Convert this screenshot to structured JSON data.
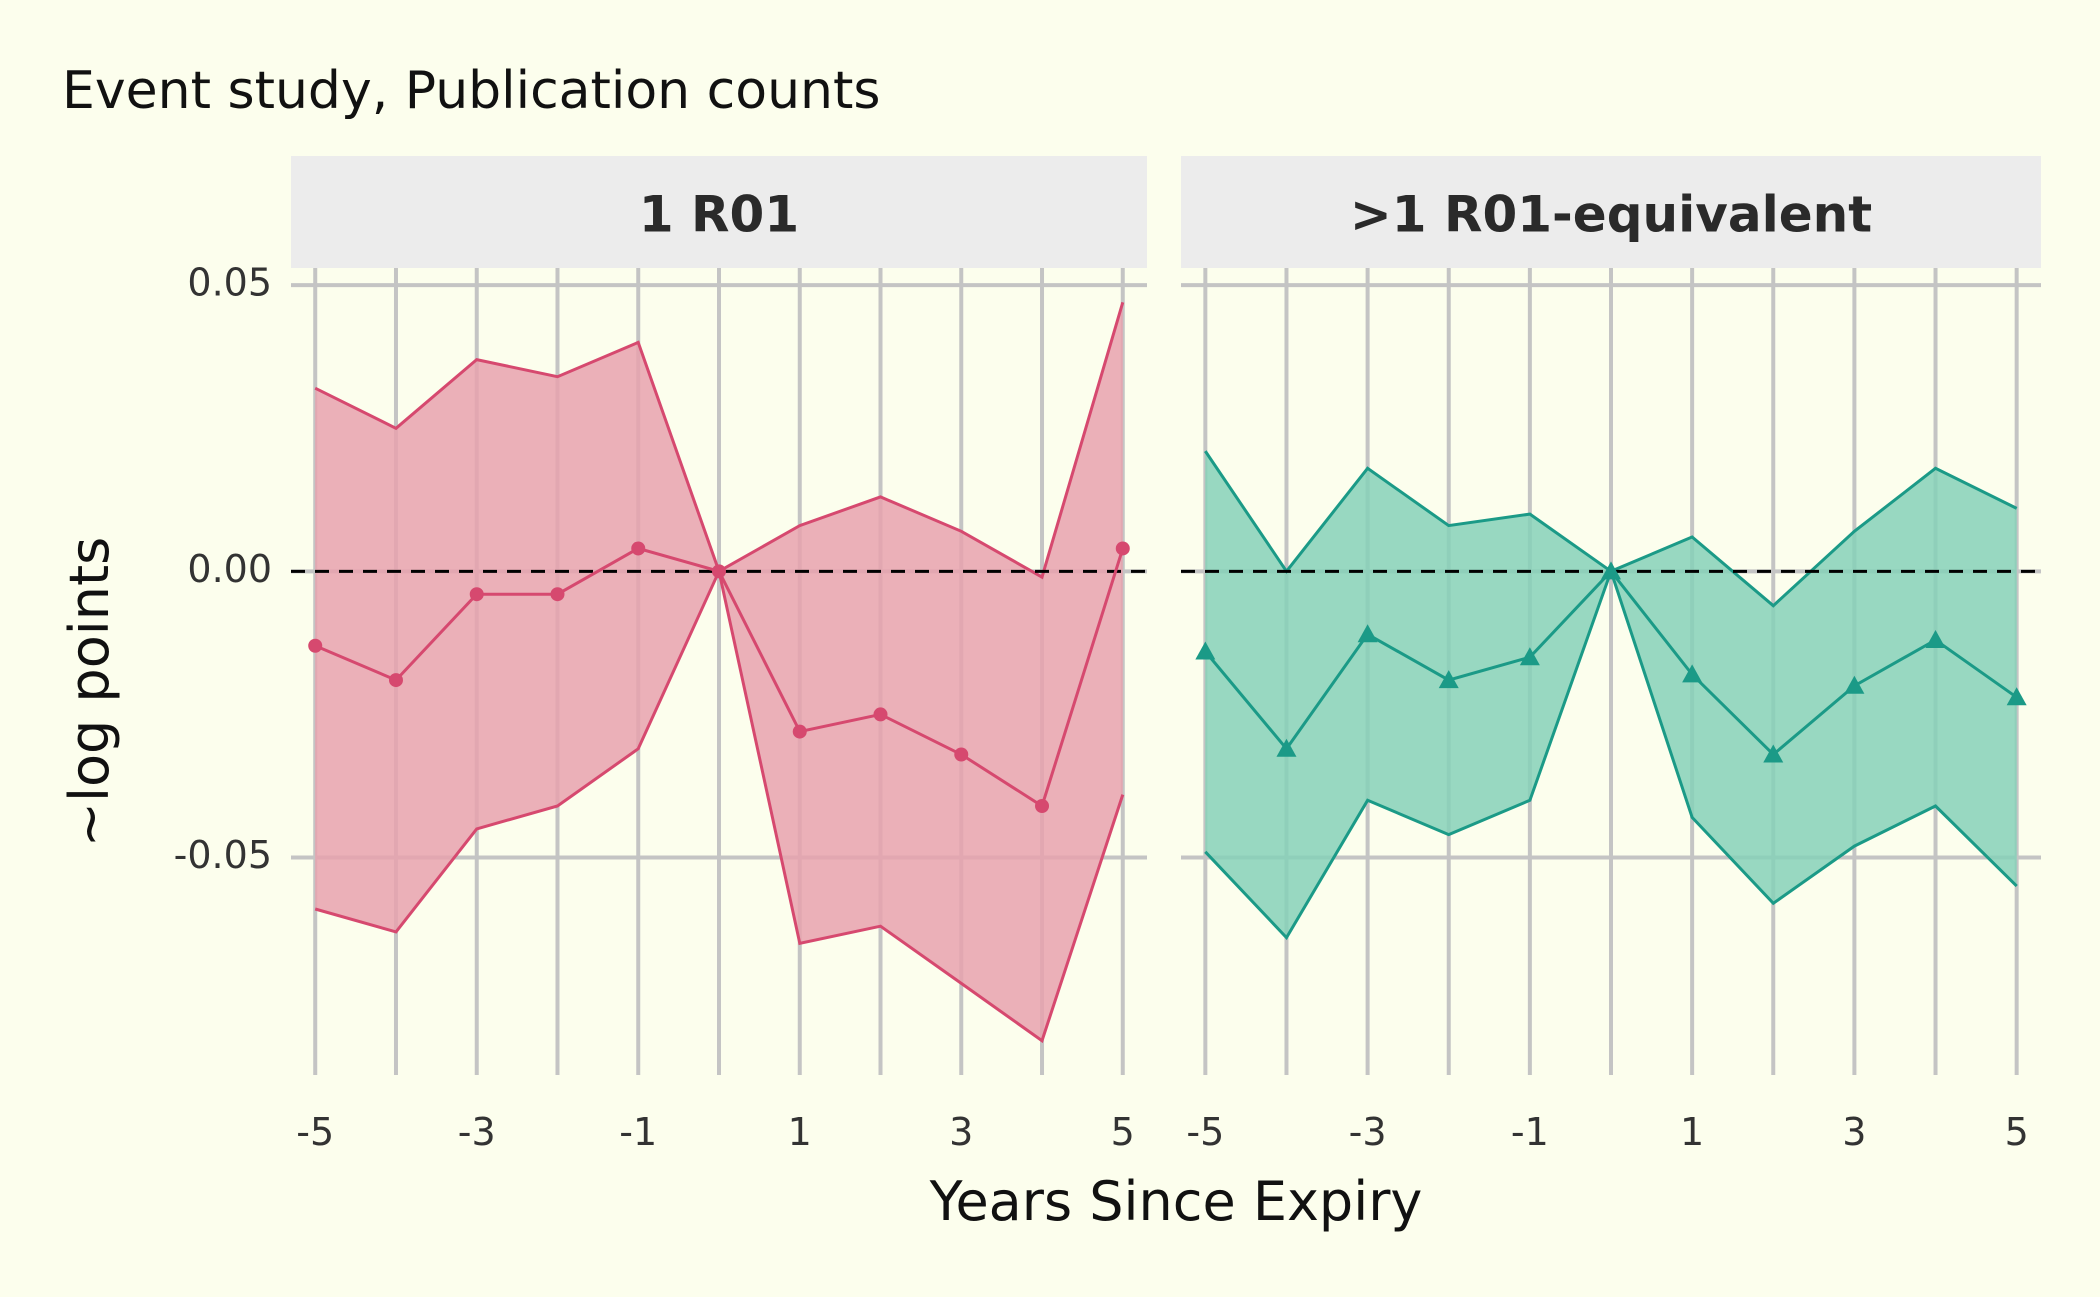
{
  "chart_data": {
    "type": "area",
    "title": "Event study, Publication counts",
    "xlabel": "Years Since Expiry",
    "ylabel": "~log points",
    "ylim": [
      -0.088,
      0.053
    ],
    "xlim": [
      -5.3,
      5.3
    ],
    "x_ticks": [
      "-5",
      "-3",
      "-1",
      "1",
      "3",
      "5"
    ],
    "y_ticks": [
      "-0.05",
      "0.00",
      "0.05"
    ],
    "grid": true,
    "reference_line": 0,
    "x": [
      -5,
      -4,
      -3,
      -2,
      -1,
      0,
      1,
      2,
      3,
      4,
      5
    ],
    "panels": [
      {
        "strip_label": "1 R01",
        "color": "#d6496f",
        "fill_color": "#e8a2ae",
        "marker": "circle",
        "estimate": [
          -0.013,
          -0.019,
          -0.004,
          -0.004,
          0.004,
          0.0,
          -0.028,
          -0.025,
          -0.032,
          -0.041,
          0.004
        ],
        "upper": [
          0.032,
          0.025,
          0.037,
          0.034,
          0.04,
          0.0,
          0.008,
          0.013,
          0.007,
          -0.001,
          0.047
        ],
        "lower": [
          -0.059,
          -0.063,
          -0.045,
          -0.041,
          -0.031,
          0.0,
          -0.065,
          -0.062,
          -0.072,
          -0.082,
          -0.039
        ]
      },
      {
        "strip_label": ">1 R01-equivalent",
        "color": "#1b9a87",
        "fill_color": "#86d1b9",
        "marker": "triangle",
        "estimate": [
          -0.014,
          -0.031,
          -0.011,
          -0.019,
          -0.015,
          0.0,
          -0.018,
          -0.032,
          -0.02,
          -0.012,
          -0.022
        ],
        "upper": [
          0.021,
          0.0,
          0.018,
          0.008,
          0.01,
          0.0,
          0.006,
          -0.006,
          0.007,
          0.018,
          0.011
        ],
        "lower": [
          -0.049,
          -0.064,
          -0.04,
          -0.046,
          -0.04,
          0.0,
          -0.043,
          -0.058,
          -0.048,
          -0.041,
          -0.055
        ]
      }
    ]
  }
}
